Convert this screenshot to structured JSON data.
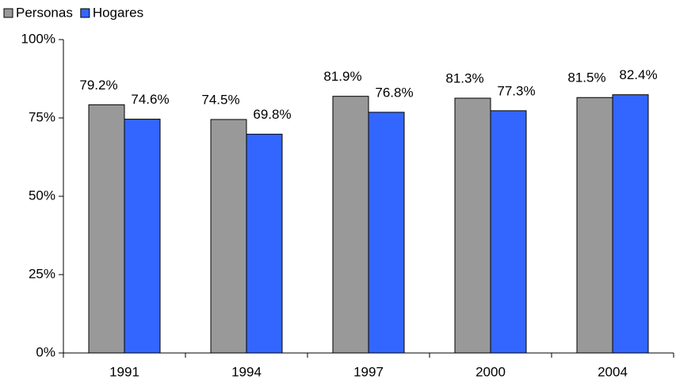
{
  "chart_data": {
    "type": "bar",
    "categories": [
      "1991",
      "1994",
      "1997",
      "2000",
      "2004"
    ],
    "series": [
      {
        "name": "Personas",
        "color": "#999999",
        "values": [
          79.2,
          74.5,
          81.9,
          81.3,
          81.5
        ],
        "value_labels": [
          "79.2%",
          "74.5%",
          "81.9%",
          "81.3%",
          "81.5%"
        ]
      },
      {
        "name": "Hogares",
        "color": "#3366ff",
        "values": [
          74.6,
          69.8,
          76.8,
          77.3,
          82.4
        ],
        "value_labels": [
          "74.6%",
          "69.8%",
          "76.8%",
          "77.3%",
          "82.4%"
        ]
      }
    ],
    "ylim": [
      0,
      100
    ],
    "yticks": [
      {
        "value": 0,
        "label": "0%"
      },
      {
        "value": 25,
        "label": "25%"
      },
      {
        "value": 50,
        "label": "50%"
      },
      {
        "value": 75,
        "label": "75%"
      },
      {
        "value": 100,
        "label": "100%"
      }
    ],
    "legend": "top-left"
  }
}
